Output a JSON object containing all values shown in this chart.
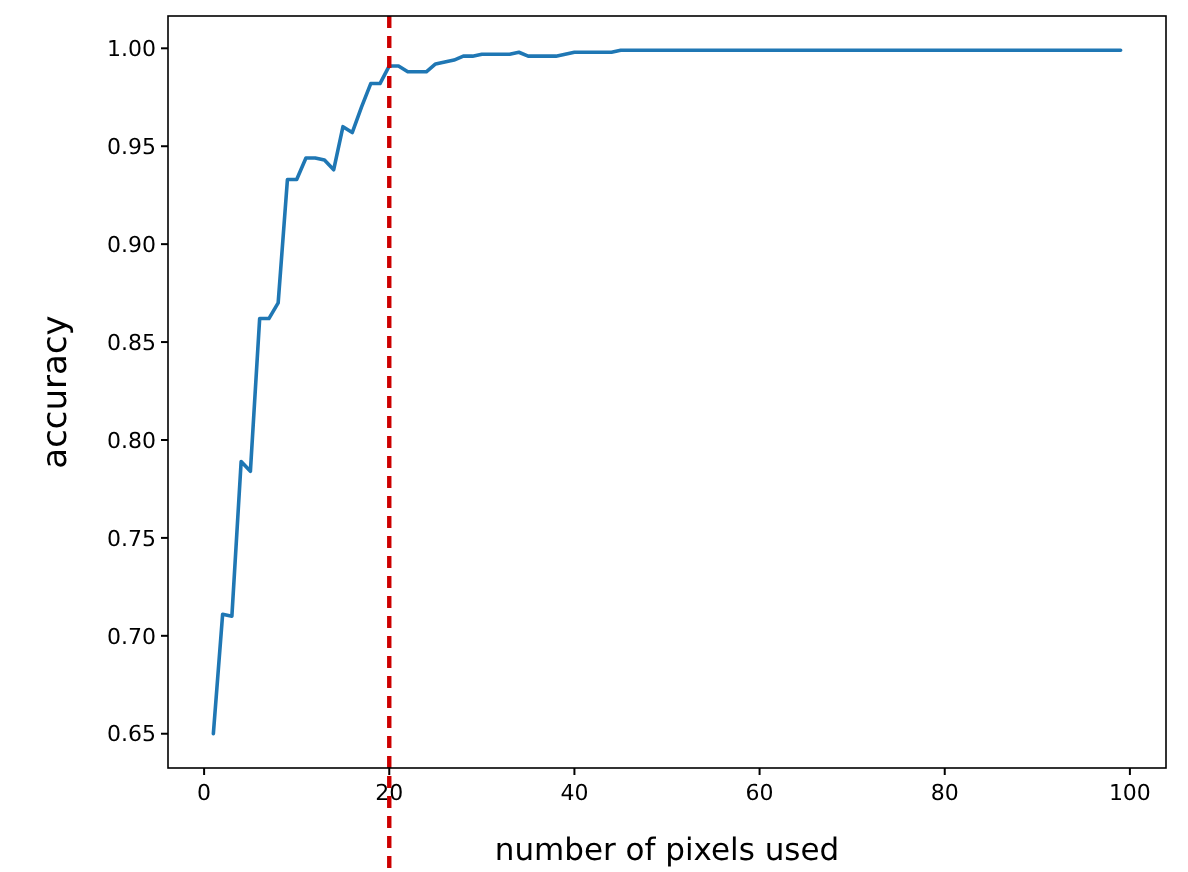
{
  "chart_data": {
    "type": "line",
    "xlabel": "number of pixels used",
    "ylabel": "accuracy",
    "x": [
      1,
      2,
      3,
      4,
      5,
      6,
      7,
      8,
      9,
      10,
      11,
      12,
      13,
      14,
      15,
      16,
      17,
      18,
      19,
      20,
      21,
      22,
      23,
      24,
      25,
      26,
      27,
      28,
      29,
      30,
      31,
      32,
      33,
      34,
      35,
      36,
      37,
      38,
      39,
      40,
      41,
      42,
      43,
      44,
      45,
      99
    ],
    "series": [
      {
        "color": "#1f77b4",
        "values": [
          0.65,
          0.711,
          0.71,
          0.789,
          0.784,
          0.862,
          0.862,
          0.87,
          0.933,
          0.933,
          0.944,
          0.944,
          0.943,
          0.938,
          0.96,
          0.957,
          0.97,
          0.982,
          0.982,
          0.991,
          0.991,
          0.988,
          0.988,
          0.988,
          0.992,
          0.993,
          0.994,
          0.996,
          0.996,
          0.997,
          0.997,
          0.997,
          0.997,
          0.998,
          0.996,
          0.996,
          0.996,
          0.996,
          0.997,
          0.998,
          0.998,
          0.998,
          0.998,
          0.998,
          0.999,
          0.999
        ]
      }
    ],
    "xlim": [
      -3.9,
      103.9
    ],
    "xticks": [
      0,
      20,
      40,
      60,
      80,
      100
    ],
    "ylim": [
      0.6325,
      1.0165
    ],
    "yticks": [
      {
        "value": 0.65,
        "label": "0.65"
      },
      {
        "value": 0.7,
        "label": "0.70"
      },
      {
        "value": 0.75,
        "label": "0.75"
      },
      {
        "value": 0.8,
        "label": "0.80"
      },
      {
        "value": 0.85,
        "label": "0.85"
      },
      {
        "value": 0.9,
        "label": "0.90"
      },
      {
        "value": 0.95,
        "label": "0.95"
      },
      {
        "value": 1.0,
        "label": "1.00"
      }
    ],
    "ref_lines": [
      {
        "axis": "x",
        "value": 20,
        "color": "#cc0000",
        "line_style": "dashed"
      }
    ],
    "grid": false,
    "marker": "none",
    "line_style": "solid"
  }
}
